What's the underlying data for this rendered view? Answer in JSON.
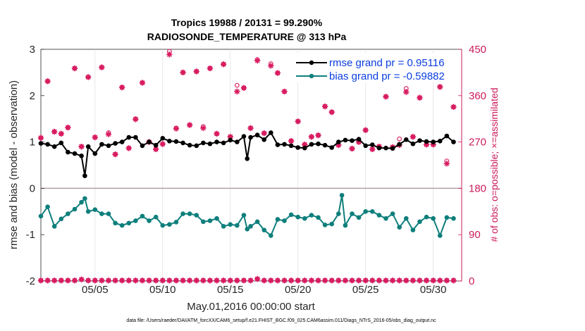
{
  "colors": {
    "rmse": "#000000",
    "bias": "#0e7f7c",
    "obs": "#d81b60",
    "right_axis": "#cc1a5c",
    "legend_text": "#0b3ee0",
    "zero_line": "#b0a0a0"
  },
  "chart_data": {
    "type": "line",
    "title_line1": "Tropics 19988 / 20131 = 99.290%",
    "title_line2": "RADIOSONDE_TEMPERATURE @ 313 hPa",
    "xlabel": "May.01,2016 00:00:00 start",
    "ylabel_left": "rmse and bias (model - observation)",
    "ylabel_right": "# of obs: o=possible; ×=assimilated",
    "ylim_left": [
      -2,
      3
    ],
    "ylim_right": [
      0,
      450
    ],
    "xlim": [
      1,
      32.1
    ],
    "left_ticks": [
      3,
      2,
      1,
      0,
      -1,
      -2
    ],
    "right_ticks": [
      450,
      360,
      270,
      180,
      90,
      0
    ],
    "x_ticks": [
      {
        "label": "05/05",
        "day": 5
      },
      {
        "label": "05/10",
        "day": 10
      },
      {
        "label": "05/15",
        "day": 15
      },
      {
        "label": "05/20",
        "day": 20
      },
      {
        "label": "05/25",
        "day": 25
      },
      {
        "label": "05/30",
        "day": 30
      }
    ],
    "legend": [
      {
        "label": "rmse grand pr = 0.95116",
        "series": "rmse"
      },
      {
        "label": "bias grand pr = -0.59882",
        "series": "bias"
      }
    ],
    "footnote": "data file: /Users/raeder/DAI/ATM_forcXX/CAM6_setup/f.e21.FHIST_BGC.f09_025.CAM6assim.011/Diags_NTrS_2016-05/obs_diag_output.nc",
    "series": [
      {
        "name": "rmse",
        "x": [
          1.0,
          1.5,
          2.0,
          2.5,
          3.0,
          3.5,
          4.0,
          4.25,
          4.5,
          5.0,
          5.5,
          6.0,
          6.5,
          7.0,
          7.5,
          8.0,
          8.5,
          9.0,
          9.5,
          10.0,
          10.5,
          11.0,
          11.5,
          12.0,
          12.5,
          13.0,
          13.5,
          14.0,
          14.5,
          15.0,
          15.5,
          16.0,
          16.25,
          16.5,
          17.0,
          17.5,
          18.0,
          18.5,
          19.0,
          19.5,
          20.0,
          20.5,
          21.0,
          21.5,
          22.0,
          22.5,
          23.0,
          23.5,
          24.0,
          24.5,
          25.0,
          25.5,
          26.0,
          26.5,
          27.0,
          27.5,
          28.0,
          28.5,
          29.0,
          29.5,
          30.0,
          30.5,
          31.0,
          31.5
        ],
        "values": [
          0.97,
          0.95,
          0.9,
          0.98,
          0.78,
          0.75,
          0.7,
          0.27,
          0.9,
          0.75,
          0.95,
          0.92,
          0.97,
          1.0,
          1.1,
          1.1,
          0.92,
          1.0,
          0.93,
          1.08,
          1.02,
          1.01,
          0.98,
          0.93,
          0.92,
          0.98,
          0.96,
          1.0,
          0.98,
          1.04,
          1.0,
          1.12,
          0.64,
          1.1,
          1.15,
          1.05,
          1.2,
          0.94,
          0.95,
          0.92,
          0.88,
          0.87,
          0.95,
          0.96,
          0.93,
          0.88,
          1.0,
          1.04,
          1.03,
          1.06,
          0.92,
          0.94,
          0.87,
          0.87,
          0.86,
          0.95,
          1.05,
          0.96,
          1.03,
          1.01,
          1.0,
          1.02,
          1.13,
          1.0
        ]
      },
      {
        "name": "bias",
        "x": [
          1.0,
          1.5,
          2.0,
          2.5,
          3.0,
          3.5,
          4.0,
          4.25,
          4.5,
          5.0,
          5.5,
          6.0,
          6.5,
          7.0,
          7.5,
          8.0,
          8.5,
          9.0,
          9.5,
          10.0,
          10.5,
          11.0,
          11.5,
          12.0,
          12.5,
          13.0,
          13.5,
          14.0,
          14.5,
          15.0,
          15.5,
          16.0,
          16.25,
          16.5,
          17.0,
          17.5,
          18.0,
          18.5,
          19.0,
          19.5,
          20.0,
          20.5,
          21.0,
          21.5,
          22.0,
          22.5,
          23.0,
          23.25,
          23.5,
          24.0,
          24.5,
          25.0,
          25.5,
          26.0,
          26.5,
          27.0,
          27.5,
          28.0,
          28.5,
          29.0,
          29.5,
          30.0,
          30.5,
          31.0,
          31.5
        ],
        "values": [
          -0.6,
          -0.4,
          -0.82,
          -0.66,
          -0.55,
          -0.45,
          -0.3,
          -0.22,
          -0.5,
          -0.46,
          -0.55,
          -0.55,
          -0.75,
          -0.8,
          -0.75,
          -0.7,
          -0.6,
          -0.7,
          -0.62,
          -0.8,
          -0.78,
          -0.73,
          -0.55,
          -0.55,
          -0.58,
          -0.72,
          -0.7,
          -0.65,
          -0.82,
          -0.78,
          -0.8,
          -0.58,
          -0.88,
          -0.82,
          -0.72,
          -0.9,
          -1.02,
          -0.67,
          -0.7,
          -0.57,
          -0.62,
          -0.65,
          -0.58,
          -0.63,
          -0.79,
          -0.77,
          -0.55,
          -0.15,
          -0.8,
          -0.55,
          -0.63,
          -0.5,
          -0.5,
          -0.58,
          -0.65,
          -0.55,
          -0.84,
          -0.65,
          -0.9,
          -0.72,
          -0.62,
          -0.65,
          -1.02,
          -0.63,
          -0.65
        ]
      },
      {
        "name": "obs_possible",
        "x": [
          1.0,
          1.5,
          2.0,
          2.5,
          3.0,
          3.5,
          4.0,
          4.5,
          5.0,
          5.5,
          6.0,
          6.5,
          7.0,
          7.5,
          8.0,
          8.5,
          9.0,
          9.5,
          10.0,
          10.5,
          11.0,
          11.5,
          12.0,
          12.5,
          13.0,
          13.5,
          14.0,
          14.5,
          15.0,
          15.5,
          16.0,
          16.5,
          17.0,
          17.5,
          18.0,
          18.5,
          19.0,
          19.5,
          20.0,
          20.5,
          21.0,
          21.5,
          22.0,
          22.5,
          23.0,
          23.5,
          24.0,
          24.5,
          25.0,
          25.5,
          26.0,
          26.5,
          27.0,
          27.5,
          28.0,
          28.5,
          29.0,
          29.5,
          30.0,
          30.5,
          31.0,
          31.5
        ],
        "values": [
          278,
          388,
          290,
          286,
          298,
          413,
          261,
          396,
          279,
          415,
          288,
          246,
          376,
          258,
          315,
          385,
          270,
          256,
          266,
          446,
          297,
          405,
          303,
          407,
          300,
          413,
          286,
          421,
          280,
          380,
          375,
          297,
          430,
          287,
          422,
          404,
          368,
          272,
          310,
          265,
          280,
          283,
          339,
          328,
          264,
          400,
          257,
          270,
          293,
          256,
          261,
          358,
          260,
          276,
          374,
          280,
          356,
          265,
          265,
          377,
          233,
          338
        ]
      },
      {
        "name": "obs_assimilated",
        "x": [
          1.0,
          1.5,
          2.0,
          2.5,
          3.0,
          3.5,
          4.0,
          4.5,
          5.0,
          5.5,
          6.0,
          6.5,
          7.0,
          7.5,
          8.0,
          8.5,
          9.0,
          9.5,
          10.0,
          10.5,
          11.0,
          11.5,
          12.0,
          12.5,
          13.0,
          13.5,
          14.0,
          14.5,
          15.0,
          15.5,
          16.0,
          16.5,
          17.0,
          17.5,
          18.0,
          18.5,
          19.0,
          19.5,
          20.0,
          20.5,
          21.0,
          21.5,
          22.0,
          22.5,
          23.0,
          23.5,
          24.0,
          24.5,
          25.0,
          25.5,
          26.0,
          26.5,
          27.0,
          27.5,
          28.0,
          28.5,
          29.0,
          29.5,
          30.0,
          30.5,
          31.0,
          31.5
        ],
        "values": [
          278,
          388,
          290,
          286,
          298,
          413,
          261,
          396,
          279,
          415,
          285,
          246,
          376,
          258,
          314,
          385,
          270,
          256,
          266,
          440,
          296,
          405,
          303,
          407,
          297,
          413,
          286,
          421,
          280,
          368,
          375,
          297,
          428,
          287,
          418,
          404,
          368,
          272,
          310,
          265,
          280,
          283,
          339,
          328,
          264,
          400,
          257,
          270,
          293,
          256,
          261,
          358,
          260,
          264,
          367,
          280,
          356,
          265,
          265,
          377,
          228,
          338
        ]
      },
      {
        "name": "obs_possible_low",
        "x": [
          1.0,
          1.5,
          2.0,
          2.5,
          3.0,
          3.5,
          4.0,
          4.5,
          5.0,
          5.5,
          6.0,
          6.5,
          7.0,
          7.5,
          8.0,
          8.5,
          9.0,
          9.5,
          10.0,
          10.5,
          11.0,
          11.5,
          12.0,
          12.5,
          13.0,
          13.5,
          14.0,
          14.5,
          15.0,
          15.5,
          16.0,
          16.5,
          17.0,
          17.5,
          18.0,
          18.5,
          19.0,
          19.5,
          20.0,
          20.5,
          21.0,
          21.5,
          22.0,
          22.5,
          23.0,
          23.5,
          24.0,
          24.5,
          25.0,
          25.5,
          26.0,
          26.5,
          27.0,
          27.5,
          28.0,
          28.5,
          29.0,
          29.5,
          30.0,
          30.5,
          31.0,
          31.5
        ],
        "values": [
          1,
          1,
          1,
          1,
          1,
          1,
          3,
          1,
          1,
          1,
          1,
          1,
          1,
          1,
          1,
          1,
          1,
          1,
          1,
          1,
          1,
          1,
          1,
          1,
          1,
          1,
          1,
          1,
          1,
          1,
          1,
          1,
          4,
          1,
          1,
          1,
          1,
          1,
          1,
          1,
          1,
          1,
          1,
          1,
          1,
          1,
          1,
          1,
          1,
          1,
          1,
          1,
          1,
          1,
          1,
          1,
          1,
          1,
          1,
          1,
          1,
          1
        ]
      }
    ]
  }
}
